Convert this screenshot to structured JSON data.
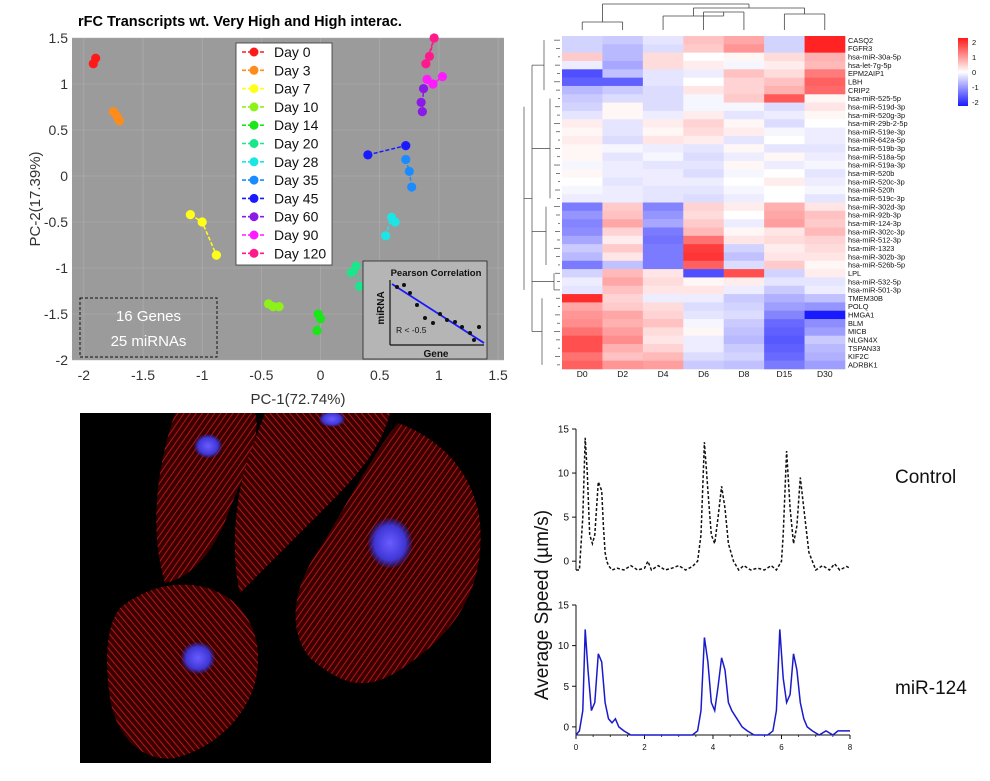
{
  "chart_data": [
    {
      "type": "scatter",
      "title": "rFC Transcripts wt. Very High and High interac.",
      "xlabel": "PC-1(72.74%)",
      "ylabel": "PC-2(17.39%)",
      "xlim": [
        -2.1,
        1.55
      ],
      "ylim": [
        -2.0,
        1.5
      ],
      "xticks": [
        "-2",
        "-1.5",
        "-1",
        "-0.5",
        "0",
        "0.5",
        "1",
        "1.5"
      ],
      "yticks": [
        "1.5",
        "1",
        "0.5",
        "0",
        "-0.5",
        "-1",
        "-1.5",
        "-2"
      ],
      "background": "#9b9b9b",
      "legend_position": "top-center",
      "series": [
        {
          "name": "Day 0",
          "color": "#ff1a1a",
          "points": [
            [
              -1.92,
              1.22
            ],
            [
              -1.9,
              1.28
            ]
          ]
        },
        {
          "name": "Day 3",
          "color": "#ff8c1a",
          "points": [
            [
              -1.75,
              0.7
            ],
            [
              -1.72,
              0.65
            ],
            [
              -1.7,
              0.6
            ]
          ]
        },
        {
          "name": "Day 7",
          "color": "#ffff1a",
          "points": [
            [
              -1.1,
              -0.42
            ],
            [
              -1.0,
              -0.5
            ],
            [
              -0.88,
              -0.86
            ]
          ]
        },
        {
          "name": "Day 10",
          "color": "#8cf21a",
          "points": [
            [
              -0.44,
              -1.39
            ],
            [
              -0.4,
              -1.42
            ],
            [
              -0.35,
              -1.42
            ]
          ]
        },
        {
          "name": "Day 14",
          "color": "#1ae61a",
          "points": [
            [
              -0.02,
              -1.5
            ],
            [
              0.0,
              -1.55
            ],
            [
              -0.03,
              -1.68
            ]
          ]
        },
        {
          "name": "Day 20",
          "color": "#1ae68c",
          "points": [
            [
              0.26,
              -1.05
            ],
            [
              0.3,
              -0.98
            ],
            [
              0.33,
              -1.2
            ]
          ]
        },
        {
          "name": "Day 28",
          "color": "#1ae6e6",
          "points": [
            [
              0.55,
              -0.65
            ],
            [
              0.6,
              -0.45
            ],
            [
              0.63,
              -0.5
            ]
          ]
        },
        {
          "name": "Day 35",
          "color": "#1a8cff",
          "points": [
            [
              0.72,
              0.18
            ],
            [
              0.75,
              0.05
            ],
            [
              0.77,
              -0.12
            ]
          ]
        },
        {
          "name": "Day 45",
          "color": "#1a1aff",
          "points": [
            [
              0.4,
              0.23
            ],
            [
              0.72,
              0.33
            ]
          ]
        },
        {
          "name": "Day 60",
          "color": "#8c1ae6",
          "points": [
            [
              0.85,
              0.8
            ],
            [
              0.86,
              0.7
            ],
            [
              0.87,
              0.95
            ]
          ]
        },
        {
          "name": "Day 90",
          "color": "#ff1aff",
          "points": [
            [
              0.9,
              1.05
            ],
            [
              0.95,
              1.0
            ],
            [
              1.03,
              1.08
            ]
          ]
        },
        {
          "name": "Day 120",
          "color": "#ff1a8c",
          "points": [
            [
              0.92,
              1.3
            ],
            [
              0.96,
              1.5
            ],
            [
              0.89,
              1.22
            ]
          ]
        }
      ],
      "annotation_box": {
        "lines": [
          "16 Genes",
          "25 miRNAs"
        ]
      },
      "inset": {
        "title": "Pearson Correlation",
        "xlabel": "Gene",
        "ylabel": "miRNA",
        "annotation": "R < -0.5"
      }
    },
    {
      "type": "heatmap",
      "columns": [
        "D0",
        "D2",
        "D4",
        "D6",
        "D8",
        "D15",
        "D30"
      ],
      "rows": [
        "CASQ2",
        "FGFR3",
        "hsa-miR-30a-5p",
        "hsa-let-7g-5p",
        "EPM2AIP1",
        "LBH",
        "CRIP2",
        "hsa-miR-525-5p",
        "hsa-miR-519d-3p",
        "hsa-miR-520g-3p",
        "hsa-miR-29b-2-5p",
        "hsa-miR-519e-3p",
        "hsa-miR-642a-5p",
        "hsa-miR-519b-3p",
        "hsa-miR-518a-5p",
        "hsa-miR-519a-3p",
        "hsa-miR-520b",
        "hsa-miR-520c-3p",
        "hsa-miR-520h",
        "hsa-miR-519c-3p",
        "hsa-miR-302d-3p",
        "hsa-miR-92b-3p",
        "hsa-miR-124-3p",
        "hsa-miR-302c-3p",
        "hsa-miR-512-3p",
        "hsa-miR-1323",
        "hsa-miR-302b-3p",
        "hsa-miR-526b-5p",
        "LPL",
        "hsa-miR-532-5p",
        "hsa-miR-501-3p",
        "TMEM30B",
        "POLQ",
        "HMGA1",
        "BLM",
        "MICB",
        "NLGN4X",
        "TSPAN33",
        "KIF2C",
        "ADRBK1"
      ],
      "values": [
        [
          -0.5,
          -0.6,
          -0.3,
          0.7,
          1.0,
          -0.5,
          2.5
        ],
        [
          -0.5,
          -0.8,
          -0.4,
          0.6,
          1.2,
          -0.5,
          2.5
        ],
        [
          0.6,
          -0.8,
          0.4,
          0.0,
          0.1,
          0.4,
          0.9
        ],
        [
          -0.2,
          -1.0,
          0.4,
          0.2,
          -0.1,
          0.2,
          0.8
        ],
        [
          -2.0,
          -0.7,
          -0.3,
          -0.2,
          0.7,
          0.4,
          1.5
        ],
        [
          -1.8,
          -1.8,
          -0.3,
          0.0,
          0.5,
          0.7,
          1.8
        ],
        [
          -0.8,
          -0.6,
          -0.4,
          0.3,
          0.5,
          0.9,
          1.7
        ],
        [
          -0.6,
          -0.4,
          -0.4,
          -0.1,
          0.6,
          1.9,
          0.1
        ],
        [
          -0.5,
          0.1,
          -0.4,
          -0.1,
          -0.1,
          -0.4,
          0.3
        ],
        [
          -0.3,
          0.1,
          -0.2,
          0.2,
          -0.3,
          -0.2,
          0.1
        ],
        [
          0.2,
          -0.3,
          0.2,
          0.5,
          0.1,
          -0.4,
          0.0
        ],
        [
          0.1,
          -0.3,
          0.1,
          0.4,
          0.2,
          -0.1,
          -0.2
        ],
        [
          0.2,
          -0.4,
          0.3,
          0.2,
          -0.3,
          0.0,
          -0.2
        ],
        [
          0.1,
          -0.1,
          -0.2,
          -0.3,
          0.1,
          -0.3,
          -0.3
        ],
        [
          0.1,
          -0.3,
          -0.1,
          -0.4,
          -0.2,
          0.1,
          -0.2
        ],
        [
          -0.1,
          -0.2,
          -0.3,
          -0.3,
          0.1,
          -0.2,
          -0.1
        ],
        [
          0.1,
          -0.2,
          -0.2,
          -0.4,
          -0.1,
          0.0,
          -0.3
        ],
        [
          0.0,
          -0.3,
          -0.2,
          -0.2,
          0.0,
          0.2,
          -0.2
        ],
        [
          -0.1,
          -0.2,
          -0.3,
          -0.3,
          -0.1,
          0.0,
          -0.1
        ],
        [
          -0.2,
          -0.2,
          -0.3,
          -0.4,
          -0.2,
          0.0,
          -0.3
        ],
        [
          -1.5,
          0.6,
          -1.4,
          0.5,
          0.2,
          0.9,
          0.3
        ],
        [
          -1.2,
          0.7,
          -1.2,
          0.4,
          0.0,
          1.0,
          0.7
        ],
        [
          -1.4,
          1.0,
          -1.0,
          0.6,
          -0.2,
          1.1,
          0.6
        ],
        [
          -1.3,
          0.5,
          -1.5,
          0.8,
          0.1,
          0.3,
          0.8
        ],
        [
          -1.0,
          0.2,
          -1.6,
          1.6,
          0.3,
          0.4,
          0.5
        ],
        [
          -0.6,
          0.6,
          -1.5,
          2.2,
          -0.5,
          0.2,
          0.4
        ],
        [
          -0.8,
          0.3,
          -1.5,
          2.3,
          -0.7,
          0.3,
          0.3
        ],
        [
          -1.5,
          -0.7,
          -1.5,
          1.8,
          -0.4,
          0.6,
          0.1
        ],
        [
          -0.5,
          0.8,
          0.3,
          -2.0,
          2.0,
          -0.5,
          0.2
        ],
        [
          -0.2,
          1.0,
          0.4,
          0.1,
          0.2,
          -0.3,
          -0.3
        ],
        [
          -0.3,
          0.7,
          0.3,
          0.3,
          -0.2,
          -0.6,
          -0.2
        ],
        [
          2.4,
          0.5,
          -0.2,
          -0.2,
          -0.6,
          -0.9,
          -0.7
        ],
        [
          1.0,
          0.6,
          0.4,
          -0.4,
          -0.5,
          -1.1,
          -1.2
        ],
        [
          1.2,
          1.0,
          0.5,
          -0.3,
          -0.4,
          -1.4,
          -2.6
        ],
        [
          1.3,
          0.9,
          0.7,
          -0.1,
          -0.6,
          -1.7,
          -1.3
        ],
        [
          1.6,
          1.1,
          0.4,
          0.1,
          -0.7,
          -1.8,
          -1.1
        ],
        [
          2.0,
          1.3,
          0.3,
          -0.2,
          -0.8,
          -1.9,
          -0.6
        ],
        [
          2.0,
          0.9,
          0.5,
          -0.2,
          -0.6,
          -1.8,
          -0.8
        ],
        [
          1.6,
          0.7,
          0.8,
          -0.4,
          -0.5,
          -1.7,
          -0.9
        ],
        [
          1.8,
          1.2,
          1.1,
          -0.6,
          -0.7,
          -1.5,
          -1.1
        ]
      ],
      "colorbar_ticks": [
        "2",
        "1",
        "0",
        "-1",
        "-2"
      ],
      "vrange": [
        -2.6,
        2.6
      ],
      "colors": {
        "low": "#1a1aff",
        "mid": "#ffffff",
        "high": "#ff1a1a"
      }
    },
    {
      "type": "line",
      "ylabel": "Average  Speed  (µm/s)",
      "xlim": [
        0,
        8
      ],
      "ylim": [
        -1,
        15
      ],
      "xticks": [
        "0",
        "2",
        "4",
        "6",
        "8"
      ],
      "yticks": [
        "15",
        "10",
        "5",
        "0"
      ],
      "series": [
        {
          "name": "Control",
          "color": "#111111",
          "dash": true,
          "x": [
            0,
            0.1,
            0.2,
            0.27,
            0.33,
            0.4,
            0.48,
            0.55,
            0.65,
            0.75,
            0.8,
            0.85,
            0.9,
            0.95,
            1.05,
            1.2,
            1.4,
            1.6,
            1.8,
            2.0,
            2.1,
            2.2,
            2.4,
            2.6,
            2.8,
            3.0,
            3.2,
            3.4,
            3.55,
            3.65,
            3.75,
            3.85,
            3.95,
            4.05,
            4.15,
            4.25,
            4.35,
            4.45,
            4.6,
            4.75,
            4.9,
            5.1,
            5.3,
            5.5,
            5.7,
            5.85,
            6.0,
            6.05,
            6.15,
            6.25,
            6.35,
            6.45,
            6.55,
            6.65,
            6.8,
            7.0,
            7.2,
            7.4,
            7.55,
            7.7,
            7.9,
            8.0
          ],
          "y": [
            -1,
            -1,
            5,
            14,
            10,
            3,
            2,
            3,
            9,
            8,
            4,
            1,
            0,
            -0.5,
            -1,
            -0.8,
            -1,
            -0.5,
            -1,
            -0.8,
            0,
            -1,
            -0.5,
            -1,
            -0.8,
            -0.5,
            -1,
            -0.6,
            0,
            3,
            13.5,
            8,
            3,
            2,
            5,
            8.5,
            6,
            2,
            0,
            -1,
            -0.5,
            -1,
            -0.8,
            -1,
            -0.5,
            -1,
            0,
            3,
            12.5,
            6,
            2,
            4,
            9.5,
            6,
            1,
            -1,
            -0.5,
            -1,
            -0.3,
            -1,
            -0.6,
            -0.8
          ]
        },
        {
          "name": "miR-124",
          "color": "#1a1acc",
          "dash": false,
          "x": [
            0,
            0.1,
            0.2,
            0.27,
            0.35,
            0.45,
            0.55,
            0.65,
            0.75,
            0.85,
            0.95,
            1.05,
            1.15,
            1.25,
            1.4,
            1.6,
            1.8,
            2.0,
            2.2,
            2.4,
            2.6,
            2.8,
            3.0,
            3.2,
            3.4,
            3.55,
            3.65,
            3.75,
            3.85,
            3.95,
            4.05,
            4.15,
            4.25,
            4.35,
            4.45,
            4.55,
            4.7,
            4.85,
            5.0,
            5.2,
            5.4,
            5.6,
            5.75,
            5.85,
            5.95,
            6.05,
            6.15,
            6.25,
            6.35,
            6.45,
            6.55,
            6.65,
            6.75,
            6.9,
            7.1,
            7.3,
            7.5,
            7.65,
            7.7,
            7.9,
            8.0
          ],
          "y": [
            -1,
            -0.5,
            2,
            12,
            7,
            2,
            3,
            9,
            8,
            3,
            1,
            0.5,
            1,
            0,
            -0.5,
            -1,
            -1,
            -1,
            -1,
            -1,
            -1,
            -1,
            -1,
            -1,
            -1,
            -0.5,
            2,
            11,
            8,
            3,
            2,
            5,
            8.5,
            7,
            3,
            2,
            1,
            0,
            -0.5,
            -1,
            -1,
            -1,
            -0.5,
            2,
            12,
            6,
            3,
            4,
            9,
            7,
            3,
            1,
            0,
            -0.5,
            -1,
            -0.5,
            -1,
            -0.5,
            -0.5,
            -0.5,
            -0.5
          ]
        }
      ]
    }
  ]
}
